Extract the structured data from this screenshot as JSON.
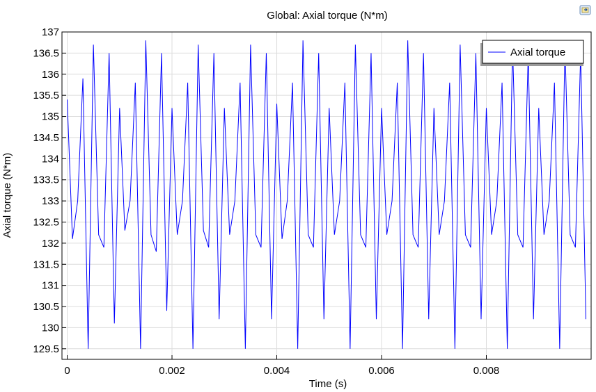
{
  "chart_data": {
    "type": "line",
    "title": "Global: Axial torque (N*m)",
    "xlabel": "Time (s)",
    "ylabel": "Axial torque (N*m)",
    "xlim": [
      -0.0001,
      0.01
    ],
    "ylim": [
      129.25,
      137
    ],
    "x_ticks": [
      0,
      0.002,
      0.004,
      0.006,
      0.008
    ],
    "x_tick_labels": [
      "0",
      "0.002",
      "0.004",
      "0.006",
      "0.008"
    ],
    "y_ticks": [
      129.5,
      130,
      130.5,
      131,
      131.5,
      132,
      132.5,
      133,
      133.5,
      134,
      134.5,
      135,
      135.5,
      136,
      136.5,
      137
    ],
    "y_tick_labels": [
      "129.5",
      "130",
      "130.5",
      "131",
      "131.5",
      "132",
      "132.5",
      "133",
      "133.5",
      "134",
      "134.5",
      "135",
      "135.5",
      "136",
      "136.5",
      "137"
    ],
    "grid": true,
    "legend_position": "top-right",
    "series": [
      {
        "name": "Axial torque",
        "color": "#0000ff",
        "x_start": 0,
        "x_step": 0.0001,
        "values": [
          135.4,
          132.1,
          133.0,
          135.9,
          129.5,
          136.7,
          132.2,
          131.9,
          136.5,
          130.1,
          135.2,
          132.3,
          133.0,
          135.8,
          129.5,
          136.8,
          132.2,
          131.8,
          136.5,
          130.4,
          135.2,
          132.2,
          133.0,
          135.8,
          129.5,
          136.7,
          132.3,
          131.9,
          136.5,
          130.2,
          135.2,
          132.2,
          133.0,
          135.8,
          129.5,
          136.7,
          132.2,
          131.9,
          136.5,
          130.2,
          135.3,
          132.1,
          133.0,
          135.8,
          129.5,
          136.8,
          132.2,
          131.9,
          136.5,
          130.2,
          135.2,
          132.2,
          133.0,
          135.8,
          129.5,
          136.7,
          132.2,
          131.9,
          136.5,
          130.2,
          135.2,
          132.2,
          133.0,
          135.8,
          129.5,
          136.8,
          132.2,
          131.9,
          136.5,
          130.2,
          135.2,
          132.2,
          133.0,
          135.8,
          129.5,
          136.7,
          132.2,
          131.9,
          136.5,
          130.2,
          135.2,
          132.2,
          133.0,
          135.8,
          129.5,
          136.7,
          132.2,
          131.9,
          136.5,
          130.2,
          135.2,
          132.2,
          133.0,
          135.8,
          129.5,
          136.7,
          132.2,
          131.9,
          136.5,
          130.2
        ]
      }
    ]
  }
}
